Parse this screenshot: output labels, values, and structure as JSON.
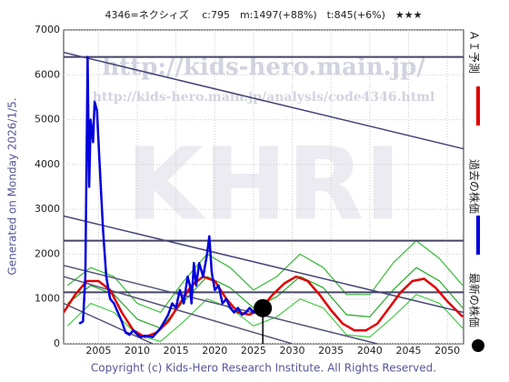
{
  "chart_data": {
    "type": "line",
    "title": "4346=ネクシィズ　 c:795　m:1497(+88%)　t:845(+6%)　★★★",
    "side_note": "Generated on Monday 2026/1/5.",
    "footer": "Copyright (c) Kids-Hero Research Institute. All Rights Reserved.",
    "watermarks": [
      "http://kids-hero.main.jp/",
      "http://kids-hero.main.jp/analysis/code4346.html",
      "KHRI"
    ],
    "xlim": [
      2000.5,
      2052.1
    ],
    "ylim": [
      0,
      7000
    ],
    "xticks": [
      2005,
      2010,
      2015,
      2020,
      2025,
      2030,
      2035,
      2040,
      2045,
      2050
    ],
    "yticks": [
      0,
      1000,
      2000,
      3000,
      4000,
      5000,
      6000,
      7000
    ],
    "grid": true,
    "bands": [
      {
        "color": "#33bb33",
        "x": [
          2001,
          2004,
          2007,
          2010,
          2013,
          2016,
          2019,
          2022,
          2025,
          2028,
          2031,
          2034,
          2037,
          2040,
          2043,
          2046,
          2049,
          2052
        ],
        "values": [
          1300,
          1700,
          1500,
          900,
          700,
          1400,
          2000,
          1700,
          1200,
          1500,
          2000,
          1700,
          1100,
          1100,
          1800,
          2300,
          1900,
          1300
        ]
      },
      {
        "color": "#44cc44",
        "x": [
          2001,
          2004,
          2007,
          2010,
          2013,
          2016,
          2019,
          2022,
          2025,
          2028,
          2031,
          2034,
          2037,
          2040,
          2043,
          2046,
          2049,
          2052
        ],
        "values": [
          400,
          900,
          700,
          200,
          50,
          500,
          1000,
          800,
          400,
          600,
          1000,
          800,
          200,
          150,
          600,
          1100,
          900,
          350
        ]
      },
      {
        "color": "#22aa22",
        "x": [
          2001,
          2004,
          2007,
          2010,
          2013,
          2016,
          2019,
          2022,
          2025,
          2028,
          2031,
          2034,
          2037,
          2040,
          2043,
          2046,
          2049,
          2052
        ],
        "values": [
          900,
          1300,
          1100,
          550,
          350,
          950,
          1500,
          1250,
          800,
          1050,
          1500,
          1250,
          650,
          600,
          1200,
          1700,
          1400,
          800
        ]
      }
    ],
    "levels": [
      {
        "color": "#444466",
        "value": 6400
      },
      {
        "color": "#444466",
        "value": 2300
      },
      {
        "color": "#444466",
        "value": 1150
      }
    ],
    "trend_lines": [
      {
        "color": "#444477",
        "x": [
          2000.5,
          2052.1
        ],
        "values": [
          6500,
          4350
        ]
      },
      {
        "color": "#444477",
        "x": [
          2000.5,
          2052.1
        ],
        "values": [
          2850,
          700
        ]
      },
      {
        "color": "#555577",
        "x": [
          2000.5,
          2041
        ],
        "values": [
          1750,
          0
        ]
      },
      {
        "color": "#555577",
        "x": [
          2000.5,
          2030
        ],
        "values": [
          1500,
          0
        ]
      },
      {
        "color": "#555577",
        "x": [
          2000.5,
          2012
        ],
        "values": [
          900,
          0
        ]
      }
    ],
    "series": [
      {
        "name": "ＡＩ予測",
        "color": "#e00000",
        "x": [
          2000.5,
          2002,
          2003.5,
          2005,
          2006.5,
          2008,
          2009.5,
          2011,
          2012.5,
          2014,
          2015.5,
          2017,
          2018.5,
          2020,
          2021.5,
          2023,
          2024.5,
          2026,
          2027.5,
          2029,
          2030.5,
          2032,
          2033.5,
          2035,
          2036.5,
          2038,
          2039.5,
          2041,
          2042.5,
          2044,
          2045.5,
          2047,
          2048.5,
          2050,
          2052
        ],
        "values": [
          700,
          1100,
          1400,
          1400,
          1200,
          700,
          300,
          150,
          250,
          500,
          900,
          1300,
          1500,
          1400,
          1000,
          700,
          650,
          800,
          1100,
          1350,
          1500,
          1400,
          1100,
          750,
          450,
          300,
          300,
          450,
          800,
          1150,
          1400,
          1450,
          1250,
          950,
          600
        ]
      },
      {
        "name": "過去の株価",
        "color": "#0000dd",
        "x": [
          2002.5,
          2003,
          2003.3,
          2003.6,
          2003.8,
          2004,
          2004.3,
          2004.5,
          2004.8,
          2005,
          2005.3,
          2005.6,
          2006,
          2006.5,
          2007,
          2007.5,
          2008,
          2008.5,
          2009,
          2009.5,
          2010,
          2010.5,
          2011,
          2012,
          2012.5,
          2013,
          2013.5,
          2014,
          2014.5,
          2015,
          2015.5,
          2016,
          2016.5,
          2016.8,
          2017,
          2017.3,
          2017.6,
          2018,
          2018.5,
          2019,
          2019.3,
          2019.6,
          2020,
          2020.5,
          2021,
          2021.5,
          2022,
          2022.5,
          2023,
          2023.5,
          2024,
          2024.5,
          2025,
          2025.5,
          2026
        ],
        "values": [
          450,
          500,
          1500,
          6400,
          3500,
          5000,
          4500,
          5400,
          5200,
          4500,
          3500,
          2500,
          1500,
          1000,
          900,
          700,
          500,
          250,
          200,
          300,
          200,
          150,
          180,
          150,
          250,
          350,
          500,
          650,
          900,
          800,
          1200,
          900,
          1500,
          1300,
          900,
          1800,
          1300,
          1800,
          1500,
          2000,
          2400,
          1600,
          1200,
          1300,
          900,
          1000,
          800,
          700,
          800,
          650,
          700,
          800,
          700,
          900,
          795
        ]
      },
      {
        "name": "最新の株価",
        "color": "#000000",
        "x": [
          2026.2
        ],
        "values": [
          795
        ],
        "marker": true
      }
    ]
  }
}
